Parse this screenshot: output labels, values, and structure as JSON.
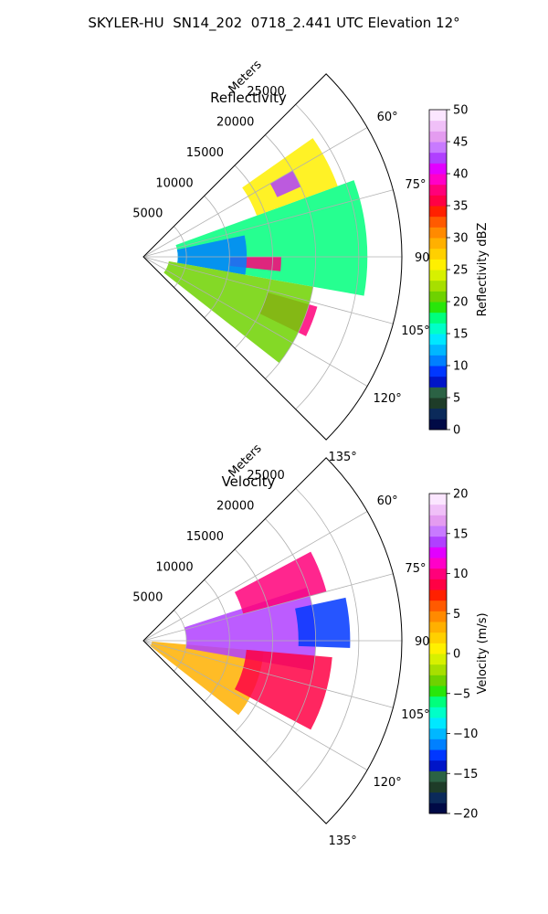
{
  "figure": {
    "title": "SKYLER-HU  SN14_202  0718_2.441 UTC Elevation 12°"
  },
  "chart_data": [
    {
      "type": "heatmap",
      "projection": "polar",
      "title": "Reflectivity",
      "range_label": "Meters",
      "range_ticks": [
        "5000",
        "10000",
        "15000",
        "20000",
        "25000"
      ],
      "range_values": [
        5000,
        10000,
        15000,
        20000,
        25000
      ],
      "rlim": [
        0,
        30000
      ],
      "azimuth_ticks": [
        "60°",
        "75°",
        "90°",
        "105°",
        "120°",
        "135°"
      ],
      "azimuth_values": [
        60,
        75,
        90,
        105,
        120,
        135
      ],
      "thetalim": [
        45,
        135
      ],
      "grid": true,
      "colorbar": {
        "label": "Reflectivity dBZ",
        "range": [
          0,
          50
        ],
        "ticks": [
          "0",
          "5",
          "10",
          "15",
          "20",
          "25",
          "30",
          "35",
          "40",
          "45",
          "50"
        ],
        "colormap": [
          "#000a46",
          "#0b2a5a",
          "#1e3c28",
          "#2b6244",
          "#0015c8",
          "#0037ff",
          "#0080ff",
          "#00b7ff",
          "#00e8ff",
          "#00ffc8",
          "#00ff7d",
          "#28e60a",
          "#6ed200",
          "#a7df00",
          "#d7f000",
          "#fff000",
          "#ffd000",
          "#ffb000",
          "#ff8a00",
          "#ff5a00",
          "#ff2000",
          "#ff0044",
          "#ff007a",
          "#ff00c8",
          "#e200ff",
          "#b040ff",
          "#c87aff",
          "#e49cf0",
          "#f0c0f8",
          "#fbe6ff"
        ]
      },
      "echoes": [
        {
          "az": [
            70,
            100
          ],
          "r": [
            4000,
            26000
          ],
          "dbz": 18
        },
        {
          "az": [
            55,
            70
          ],
          "r": [
            14000,
            24000
          ],
          "dbz": 26
        },
        {
          "az": [
            60,
            66
          ],
          "r": [
            17000,
            20000
          ],
          "dbz": 42
        },
        {
          "az": [
            90,
            96
          ],
          "r": [
            10000,
            16000
          ],
          "dbz": 38
        },
        {
          "az": [
            106,
            116
          ],
          "r": [
            15000,
            21000
          ],
          "dbz": 38
        },
        {
          "az": [
            78,
            100
          ],
          "r": [
            4000,
            12000
          ],
          "dbz": 10
        },
        {
          "az": [
            100,
            128
          ],
          "r": [
            3000,
            20000
          ],
          "dbz": 20
        }
      ]
    },
    {
      "type": "heatmap",
      "projection": "polar",
      "title": "Velocity",
      "range_label": "Meters",
      "range_ticks": [
        "5000",
        "10000",
        "15000",
        "20000",
        "25000"
      ],
      "range_values": [
        5000,
        10000,
        15000,
        20000,
        25000
      ],
      "rlim": [
        0,
        30000
      ],
      "azimuth_ticks": [
        "60°",
        "75°",
        "90°",
        "105°",
        "120°",
        "135°"
      ],
      "azimuth_values": [
        60,
        75,
        90,
        105,
        120,
        135
      ],
      "thetalim": [
        45,
        135
      ],
      "grid": true,
      "colorbar": {
        "label": "Velocity (m/s)",
        "range": [
          -20,
          20
        ],
        "ticks": [
          "−20",
          "−15",
          "−10",
          "−5",
          "0",
          "5",
          "10",
          "15",
          "20"
        ],
        "colormap": [
          "#000a46",
          "#0b2a5a",
          "#1e3c28",
          "#2b6244",
          "#0015c8",
          "#0037ff",
          "#0080ff",
          "#00b7ff",
          "#00e8ff",
          "#00ffc8",
          "#00ff7d",
          "#28e60a",
          "#6ed200",
          "#a7df00",
          "#d7f000",
          "#fff000",
          "#ffd000",
          "#ffb000",
          "#ff8a00",
          "#ff5a00",
          "#ff2000",
          "#ff0044",
          "#ff007a",
          "#ff00c8",
          "#e200ff",
          "#b040ff",
          "#c87aff",
          "#e49cf0",
          "#f0c0f8",
          "#fbe6ff"
        ]
      },
      "echoes": [
        {
          "az": [
            95,
            128
          ],
          "r": [
            1000,
            14000
          ],
          "vel": 3
        },
        {
          "az": [
            72,
            100
          ],
          "r": [
            5000,
            20000
          ],
          "vel": 14
        },
        {
          "az": [
            78,
            92
          ],
          "r": [
            18000,
            24000
          ],
          "vel": -13
        },
        {
          "az": [
            95,
            118
          ],
          "r": [
            12000,
            22000
          ],
          "vel": 8
        },
        {
          "az": [
            62,
            75
          ],
          "r": [
            12000,
            22000
          ],
          "vel": 10
        }
      ]
    }
  ]
}
